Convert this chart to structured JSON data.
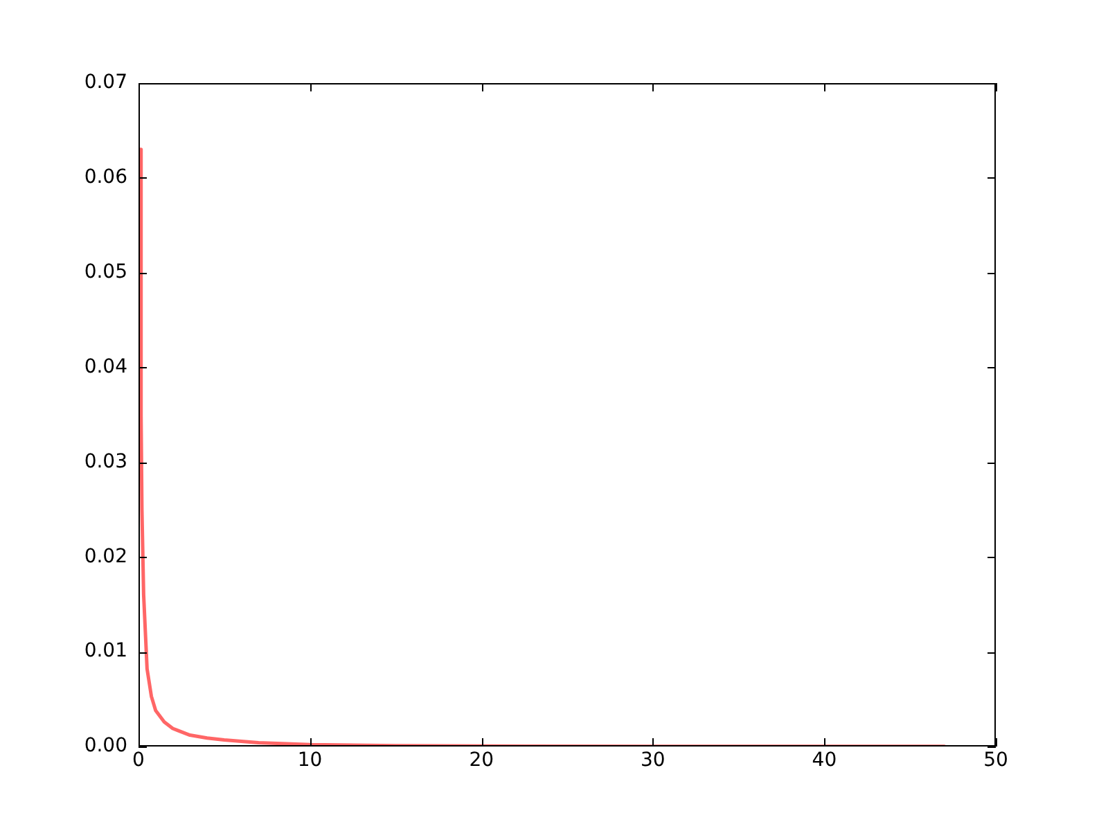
{
  "chart_data": {
    "type": "line",
    "x": [
      0.1,
      0.15,
      0.2,
      0.3,
      0.5,
      0.75,
      1,
      1.5,
      2,
      3,
      4,
      5,
      7,
      10,
      15,
      20,
      30,
      47
    ],
    "series": [
      {
        "color": "#ff6666",
        "values": [
          0.063,
          0.035,
          0.025,
          0.016,
          0.0082,
          0.0053,
          0.0038,
          0.0026,
          0.0019,
          0.0012,
          0.0009,
          0.0007,
          0.0004,
          0.0002,
          0.0001,
          5e-05,
          2e-05,
          1e-05
        ]
      }
    ],
    "xlim": [
      0,
      50
    ],
    "xticks": [
      0,
      10,
      20,
      30,
      40,
      50
    ],
    "ylim": [
      0,
      0.07
    ],
    "yticks": [
      {
        "value": 0,
        "label": "0.00"
      },
      {
        "value": 0.01,
        "label": "0.01"
      },
      {
        "value": 0.02,
        "label": "0.02"
      },
      {
        "value": 0.03,
        "label": "0.03"
      },
      {
        "value": 0.04,
        "label": "0.04"
      },
      {
        "value": 0.05,
        "label": "0.05"
      },
      {
        "value": 0.06,
        "label": "0.06"
      },
      {
        "value": 0.07,
        "label": "0.07"
      }
    ],
    "grid": false,
    "legend": false,
    "marker": "none",
    "line_style": "solid"
  }
}
